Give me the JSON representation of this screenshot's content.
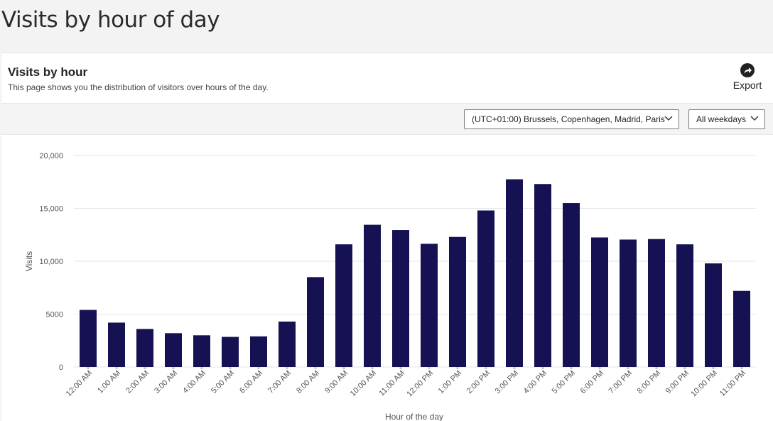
{
  "page": {
    "title": "Visits by hour of day"
  },
  "card": {
    "title": "Visits by hour",
    "description": "This page shows you the distribution of visitors over hours of the day.",
    "export_label": "Export",
    "export_icon": "share-arrow-icon"
  },
  "filters": {
    "timezone": "(UTC+01:00) Brussels, Copenhagen, Madrid, Paris",
    "weekdays": "All weekdays"
  },
  "colors": {
    "bar": "#151152",
    "grid": "#e6e6e6",
    "axis_text": "#555555"
  },
  "chart_data": {
    "type": "bar",
    "title": "",
    "xlabel": "Hour of the day",
    "ylabel": "Visits",
    "ylim": [
      0,
      20000
    ],
    "yticks": [
      0,
      5000,
      10000,
      15000,
      20000
    ],
    "ytick_labels": [
      "0",
      "5000",
      "10,000",
      "15,000",
      "20,000"
    ],
    "grid": true,
    "categories": [
      "12:00 AM",
      "1:00 AM",
      "2:00 AM",
      "3:00 AM",
      "4:00 AM",
      "5:00 AM",
      "6:00 AM",
      "7:00 AM",
      "8:00 AM",
      "9:00 AM",
      "10:00 AM",
      "11:00 AM",
      "12:00 PM",
      "1:00 PM",
      "2:00 PM",
      "3:00 PM",
      "4:00 PM",
      "5:00 PM",
      "6:00 PM",
      "7:00 PM",
      "8:00 PM",
      "9:00 PM",
      "10:00 PM",
      "11:00 PM"
    ],
    "values": [
      5400,
      4200,
      3600,
      3200,
      3000,
      2850,
      2900,
      4300,
      8500,
      11600,
      13450,
      12950,
      11650,
      12300,
      14800,
      17750,
      17300,
      15500,
      12250,
      12050,
      12100,
      11600,
      9800,
      7200
    ]
  }
}
